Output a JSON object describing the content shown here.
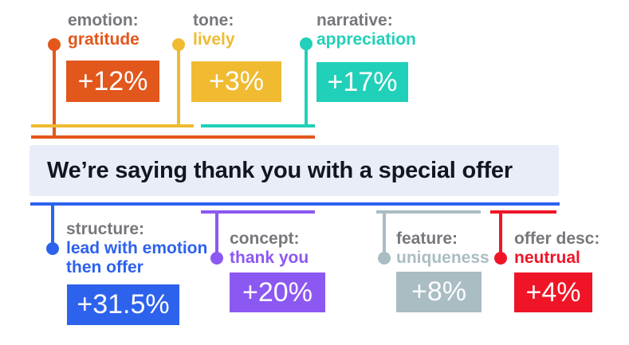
{
  "colors": {
    "background": "#ffffff",
    "label_text": "#77787c",
    "badge_text": "#fdfdfd"
  },
  "sentence": {
    "text": "We’re saying thank you with a special offer",
    "background": "#e9edf7",
    "text_color": "#14161f"
  },
  "annotations": [
    {
      "id": "emotion",
      "position": "above",
      "label": "emotion:",
      "value": "gratitude",
      "delta": "+12%",
      "color": "#e2571c"
    },
    {
      "id": "tone",
      "position": "above",
      "label": "tone:",
      "value": "lively",
      "delta": "+3%",
      "color": "#f0bb31"
    },
    {
      "id": "narrative",
      "position": "above",
      "label": "narrative:",
      "value": "appreciation",
      "delta": "+17%",
      "color": "#21d0b9"
    },
    {
      "id": "structure",
      "position": "below",
      "label": "structure:",
      "value": "lead with emotion then offer",
      "delta": "+31.5%",
      "color": "#2d62ed"
    },
    {
      "id": "concept",
      "position": "below",
      "label": "concept:",
      "value": "thank you",
      "delta": "+20%",
      "color": "#8c58f2"
    },
    {
      "id": "feature",
      "position": "below",
      "label": "feature:",
      "value": "uniqueness",
      "delta": "+8%",
      "color": "#a9bdc3"
    },
    {
      "id": "offer_desc",
      "position": "below",
      "label": "offer desc:",
      "value": "neutrual",
      "delta": "+4%",
      "color": "#ef1527"
    }
  ]
}
